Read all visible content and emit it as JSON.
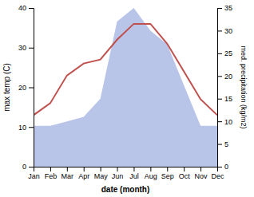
{
  "chart_data": {
    "type": "line",
    "categories": [
      "Jan",
      "Feb",
      "Mar",
      "Apr",
      "May",
      "Jun",
      "Jul",
      "Aug",
      "Sep",
      "Oct",
      "Nov",
      "Dec"
    ],
    "xlabel": "date (month)",
    "ylabel": "max temp (C)",
    "y2label": "med. precipitation (kg/m2)",
    "series": [
      {
        "type": "area",
        "axis": "y2",
        "color": "#b8c4e8",
        "values": [
          9,
          9,
          10,
          11,
          15,
          32,
          35,
          30,
          27,
          18,
          9,
          9
        ]
      },
      {
        "type": "line",
        "color": "#c0504d",
        "values": [
          13,
          16,
          23,
          26,
          27,
          32,
          36,
          36,
          31,
          24,
          17,
          13
        ]
      }
    ],
    "ylim": [
      0,
      40
    ],
    "yticks": [
      0,
      10,
      20,
      30,
      40
    ],
    "y2lim": [
      0,
      35
    ],
    "y2ticks": [
      0,
      5,
      10,
      15,
      20,
      25,
      30,
      35
    ],
    "grid": false
  }
}
